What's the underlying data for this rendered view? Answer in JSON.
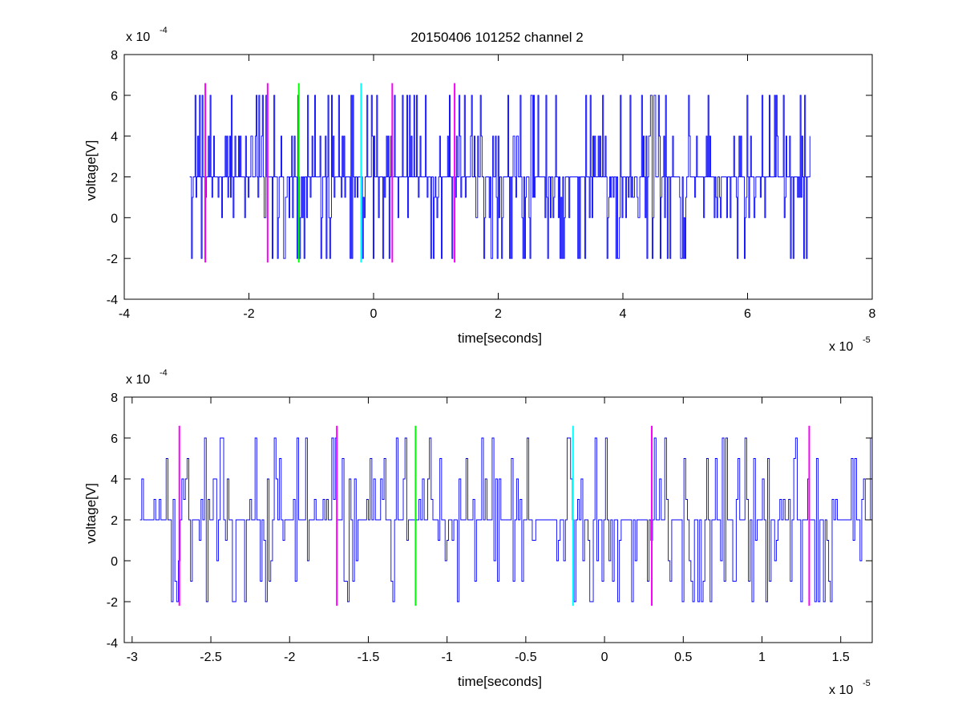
{
  "chart_data": [
    {
      "type": "line",
      "title": "20150406 101252 channel 2",
      "xlabel": "time[seconds]",
      "ylabel": "voltage[V]",
      "x_exponent": "x 10",
      "x_exponent_power": "-5",
      "y_exponent": "x 10",
      "y_exponent_power": "-4",
      "xlim": [
        -4,
        8
      ],
      "ylim": [
        -4,
        8
      ],
      "x_ticks": [
        -4,
        -2,
        0,
        2,
        4,
        6,
        8
      ],
      "y_ticks": [
        -4,
        -2,
        0,
        2,
        4,
        6,
        8
      ],
      "x_tick_labels": [
        "-4",
        "-2",
        "0",
        "2",
        "4",
        "6",
        "8"
      ],
      "y_tick_labels": [
        "-4",
        "-2",
        "0",
        "2",
        "4",
        "6",
        "8"
      ],
      "grid": false,
      "signal": {
        "color": "#0000ff",
        "x_start": -2.95,
        "x_end": 7.0,
        "levels": [
          -2,
          0,
          1,
          2,
          4,
          6
        ],
        "baseline": 2,
        "samples": 700,
        "seed": 7
      },
      "markers": [
        {
          "x": -2.7,
          "y_min": -2.2,
          "y_max": 6.6,
          "color": "#ff00ff"
        },
        {
          "x": -1.7,
          "y_min": -2.2,
          "y_max": 6.6,
          "color": "#ff00ff"
        },
        {
          "x": -1.2,
          "y_min": -2.2,
          "y_max": 6.6,
          "color": "#00ff00"
        },
        {
          "x": -0.2,
          "y_min": -2.2,
          "y_max": 6.6,
          "color": "#00ffff"
        },
        {
          "x": 0.3,
          "y_min": -2.2,
          "y_max": 6.6,
          "color": "#ff00ff"
        },
        {
          "x": 1.3,
          "y_min": -2.2,
          "y_max": 6.6,
          "color": "#ff00ff"
        }
      ]
    },
    {
      "type": "line",
      "title": "",
      "xlabel": "time[seconds]",
      "ylabel": "voltage[V]",
      "x_exponent": "x 10",
      "x_exponent_power": "-5",
      "y_exponent": "x 10",
      "y_exponent_power": "-4",
      "xlim": [
        -3.05,
        1.7
      ],
      "ylim": [
        -4,
        8
      ],
      "x_ticks": [
        -3,
        -2.5,
        -2,
        -1.5,
        -1,
        -0.5,
        0,
        0.5,
        1,
        1.5
      ],
      "y_ticks": [
        -4,
        -2,
        0,
        2,
        4,
        6,
        8
      ],
      "x_tick_labels": [
        "-3",
        "-2.5",
        "-2",
        "-1.5",
        "-1",
        "-0.5",
        "0",
        "0.5",
        "1",
        "1.5"
      ],
      "y_tick_labels": [
        "-4",
        "-2",
        "0",
        "2",
        "4",
        "6",
        "8"
      ],
      "grid": false,
      "signal": {
        "color": "#0000ff",
        "x_start": -2.95,
        "x_end": 1.7,
        "levels": [
          -2,
          -1,
          0,
          1,
          2,
          3,
          4,
          5,
          6
        ],
        "baseline": 2,
        "samples": 420,
        "seed": 13
      },
      "markers": [
        {
          "x": -2.7,
          "y_min": -2.2,
          "y_max": 6.6,
          "color": "#ff00ff"
        },
        {
          "x": -1.7,
          "y_min": -2.2,
          "y_max": 6.6,
          "color": "#ff00ff"
        },
        {
          "x": -1.2,
          "y_min": -2.2,
          "y_max": 6.6,
          "color": "#00ff00"
        },
        {
          "x": -0.2,
          "y_min": -2.2,
          "y_max": 6.6,
          "color": "#00ffff"
        },
        {
          "x": 0.3,
          "y_min": -2.2,
          "y_max": 6.6,
          "color": "#ff00ff"
        },
        {
          "x": 1.3,
          "y_min": -2.2,
          "y_max": 6.6,
          "color": "#ff00ff"
        }
      ]
    }
  ]
}
